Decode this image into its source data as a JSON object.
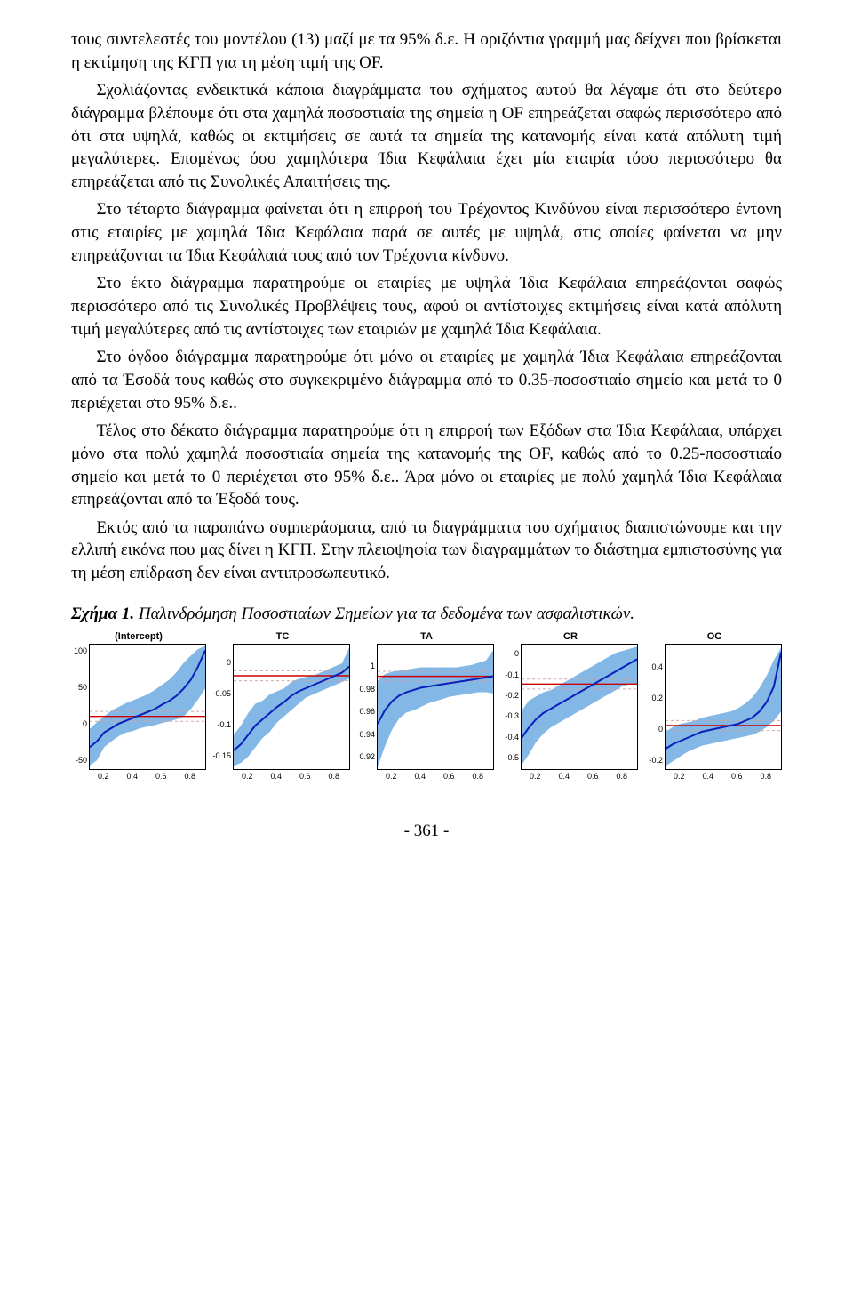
{
  "paragraphs": {
    "p1": "τους συντελεστές του μοντέλου (13) μαζί με τα 95% δ.ε. Η οριζόντια γραμμή μας δείχνει που βρίσκεται η εκτίμηση της ΚΓΠ για τη μέση τιμή της OF.",
    "p2": "Σχολιάζοντας ενδεικτικά κάποια διαγράμματα του σχήματος αυτού θα λέγαμε ότι στο δεύτερο διάγραμμα βλέπουμε ότι στα χαμηλά ποσοστιαία της σημεία η OF επηρεάζεται σαφώς περισσότερο από ότι στα υψηλά, καθώς οι εκτιμήσεις σε αυτά τα σημεία της κατανομής είναι κατά απόλυτη τιμή μεγαλύτερες. Επομένως όσο χαμηλότερα Ίδια Κεφάλαια έχει μία εταιρία τόσο περισσότερο θα επηρεάζεται από τις Συνολικές Απαιτήσεις της.",
    "p3": "Στο τέταρτο διάγραμμα φαίνεται ότι η επιρροή του Τρέχοντος Κινδύνου είναι περισσότερο έντονη στις εταιρίες με χαμηλά Ίδια Κεφάλαια παρά σε αυτές με υψηλά, στις οποίες φαίνεται να μην επηρεάζονται τα Ίδια Κεφάλαιά τους από τον Τρέχοντα κίνδυνο.",
    "p4": "Στο έκτο διάγραμμα παρατηρούμε οι εταιρίες με υψηλά Ίδια Κεφάλαια επηρεάζονται σαφώς περισσότερο από τις Συνολικές Προβλέψεις τους, αφού οι αντίστοιχες εκτιμήσεις είναι κατά απόλυτη τιμή μεγαλύτερες από τις αντίστοιχες των εταιριών με χαμηλά Ίδια Κεφάλαια.",
    "p5": "Στο όγδοο διάγραμμα παρατηρούμε ότι μόνο οι εταιρίες με χαμηλά Ίδια Κεφάλαια επηρεάζονται από τα Έσοδά τους καθώς στο συγκεκριμένο διάγραμμα από το 0.35-ποσοστιαίο σημείο και μετά το 0 περιέχεται στο 95% δ.ε..",
    "p6": "Τέλος στο δέκατο διάγραμμα παρατηρούμε ότι η επιρροή των Εξόδων στα Ίδια Κεφάλαια, υπάρχει μόνο στα πολύ χαμηλά ποσοστιαία σημεία της κατανομής της OF, καθώς από το 0.25-ποσοστιαίο σημείο και μετά το 0 περιέχεται στο 95% δ.ε.. Άρα μόνο οι εταιρίες με πολύ χαμηλά Ίδια Κεφάλαια επηρεάζονται από τα Έξοδά τους.",
    "p7": "Εκτός από τα παραπάνω συμπεράσματα, από τα διαγράμματα του σχήματος διαπιστώνουμε και την ελλιπή εικόνα που μας δίνει η ΚΓΠ. Στην πλειοψηφία των διαγραμμάτων το διάστημα εμπιστοσύνης για τη μέση επίδραση δεν είναι αντιπροσωπευτικό."
  },
  "figcap": {
    "bold": "Σχήμα 1.",
    "rest": " Παλινδρόμηση Ποσοστιαίων Σημείων για τα δεδομένα των ασφαλιστικών."
  },
  "pagenum": "- 361 -",
  "plot_global": {
    "xmin": 0.1,
    "xmax": 0.9,
    "xticks": [
      0.2,
      0.4,
      0.6,
      0.8
    ],
    "dash_color": "#c9a9a9",
    "zero_color": "#c00",
    "mean_color": "#0a1fbb",
    "ci_color": "#7bb3e5",
    "font_title": 11,
    "font_tick": 9
  },
  "panels": [
    {
      "title": "(Intercept)",
      "ymin": -60,
      "ymax": 110,
      "yticks": [
        -50,
        0,
        50,
        100
      ],
      "zero": 12,
      "x": [
        0.1,
        0.15,
        0.2,
        0.25,
        0.3,
        0.35,
        0.4,
        0.45,
        0.5,
        0.55,
        0.6,
        0.65,
        0.7,
        0.75,
        0.8,
        0.85,
        0.9
      ],
      "lo": [
        -55,
        -48,
        -30,
        -22,
        -15,
        -10,
        -8,
        -4,
        -2,
        0,
        3,
        5,
        8,
        12,
        22,
        35,
        50
      ],
      "mu": [
        -30,
        -22,
        -10,
        -4,
        2,
        6,
        10,
        14,
        18,
        22,
        28,
        33,
        40,
        50,
        62,
        80,
        102
      ],
      "hi": [
        -5,
        4,
        12,
        20,
        25,
        30,
        34,
        38,
        42,
        48,
        55,
        62,
        72,
        85,
        95,
        104,
        108
      ]
    },
    {
      "title": "TC",
      "ymin": -0.17,
      "ymax": 0.03,
      "yticks": [
        -0.15,
        -0.1,
        -0.05,
        0.0
      ],
      "zero": -0.02,
      "x": [
        0.1,
        0.15,
        0.2,
        0.25,
        0.3,
        0.35,
        0.4,
        0.45,
        0.5,
        0.55,
        0.6,
        0.65,
        0.7,
        0.75,
        0.8,
        0.85,
        0.9
      ],
      "lo": [
        -0.165,
        -0.16,
        -0.15,
        -0.135,
        -0.12,
        -0.11,
        -0.095,
        -0.085,
        -0.075,
        -0.065,
        -0.055,
        -0.05,
        -0.045,
        -0.04,
        -0.035,
        -0.03,
        -0.025
      ],
      "mu": [
        -0.14,
        -0.13,
        -0.115,
        -0.1,
        -0.09,
        -0.08,
        -0.07,
        -0.062,
        -0.052,
        -0.045,
        -0.04,
        -0.035,
        -0.03,
        -0.025,
        -0.02,
        -0.015,
        -0.005
      ],
      "hi": [
        -0.115,
        -0.1,
        -0.08,
        -0.065,
        -0.06,
        -0.05,
        -0.045,
        -0.04,
        -0.03,
        -0.025,
        -0.022,
        -0.02,
        -0.015,
        -0.01,
        -0.005,
        0.0,
        0.025
      ]
    },
    {
      "title": "TA",
      "ymin": 0.91,
      "ymax": 1.02,
      "yticks": [
        0.92,
        0.94,
        0.96,
        0.98,
        1.0
      ],
      "zero": 0.992,
      "x": [
        0.1,
        0.15,
        0.2,
        0.25,
        0.3,
        0.35,
        0.4,
        0.45,
        0.5,
        0.55,
        0.6,
        0.65,
        0.7,
        0.75,
        0.8,
        0.85,
        0.9
      ],
      "lo": [
        0.912,
        0.93,
        0.945,
        0.955,
        0.96,
        0.962,
        0.965,
        0.968,
        0.97,
        0.972,
        0.974,
        0.975,
        0.976,
        0.977,
        0.978,
        0.978,
        0.977
      ],
      "mu": [
        0.95,
        0.962,
        0.97,
        0.975,
        0.978,
        0.98,
        0.982,
        0.983,
        0.984,
        0.985,
        0.986,
        0.987,
        0.988,
        0.989,
        0.99,
        0.991,
        0.992
      ],
      "hi": [
        0.988,
        0.994,
        0.996,
        0.997,
        0.998,
        0.999,
        1.0,
        1.0,
        1.0,
        1.0,
        1.0,
        1.0,
        1.001,
        1.002,
        1.004,
        1.006,
        1.015
      ]
    },
    {
      "title": "CR",
      "ymin": -0.55,
      "ymax": 0.05,
      "yticks": [
        -0.5,
        -0.4,
        -0.3,
        -0.2,
        -0.1,
        0.0
      ],
      "zero": -0.14,
      "x": [
        0.1,
        0.15,
        0.2,
        0.25,
        0.3,
        0.35,
        0.4,
        0.45,
        0.5,
        0.55,
        0.6,
        0.65,
        0.7,
        0.75,
        0.8,
        0.85,
        0.9
      ],
      "lo": [
        -0.53,
        -0.48,
        -0.42,
        -0.38,
        -0.35,
        -0.33,
        -0.31,
        -0.29,
        -0.27,
        -0.25,
        -0.23,
        -0.21,
        -0.19,
        -0.17,
        -0.15,
        -0.14,
        -0.14
      ],
      "mu": [
        -0.4,
        -0.35,
        -0.31,
        -0.28,
        -0.26,
        -0.24,
        -0.22,
        -0.2,
        -0.18,
        -0.16,
        -0.14,
        -0.12,
        -0.1,
        -0.08,
        -0.06,
        -0.04,
        -0.02
      ],
      "hi": [
        -0.27,
        -0.22,
        -0.2,
        -0.18,
        -0.17,
        -0.15,
        -0.13,
        -0.11,
        -0.09,
        -0.07,
        -0.05,
        -0.03,
        -0.01,
        0.01,
        0.02,
        0.03,
        0.04
      ]
    },
    {
      "title": "OC",
      "ymin": -0.25,
      "ymax": 0.55,
      "yticks": [
        -0.2,
        0.0,
        0.2,
        0.4
      ],
      "zero": 0.03,
      "x": [
        0.1,
        0.15,
        0.2,
        0.25,
        0.3,
        0.35,
        0.4,
        0.45,
        0.5,
        0.55,
        0.6,
        0.65,
        0.7,
        0.75,
        0.8,
        0.85,
        0.9
      ],
      "lo": [
        -0.23,
        -0.2,
        -0.17,
        -0.14,
        -0.12,
        -0.1,
        -0.09,
        -0.08,
        -0.07,
        -0.06,
        -0.05,
        -0.04,
        -0.03,
        -0.01,
        0.02,
        0.06,
        0.12
      ],
      "mu": [
        -0.12,
        -0.09,
        -0.07,
        -0.05,
        -0.03,
        -0.01,
        0.0,
        0.01,
        0.02,
        0.03,
        0.04,
        0.06,
        0.08,
        0.12,
        0.18,
        0.28,
        0.5
      ],
      "hi": [
        -0.01,
        0.02,
        0.04,
        0.05,
        0.06,
        0.08,
        0.09,
        0.1,
        0.11,
        0.12,
        0.14,
        0.17,
        0.21,
        0.27,
        0.35,
        0.45,
        0.53
      ]
    }
  ]
}
